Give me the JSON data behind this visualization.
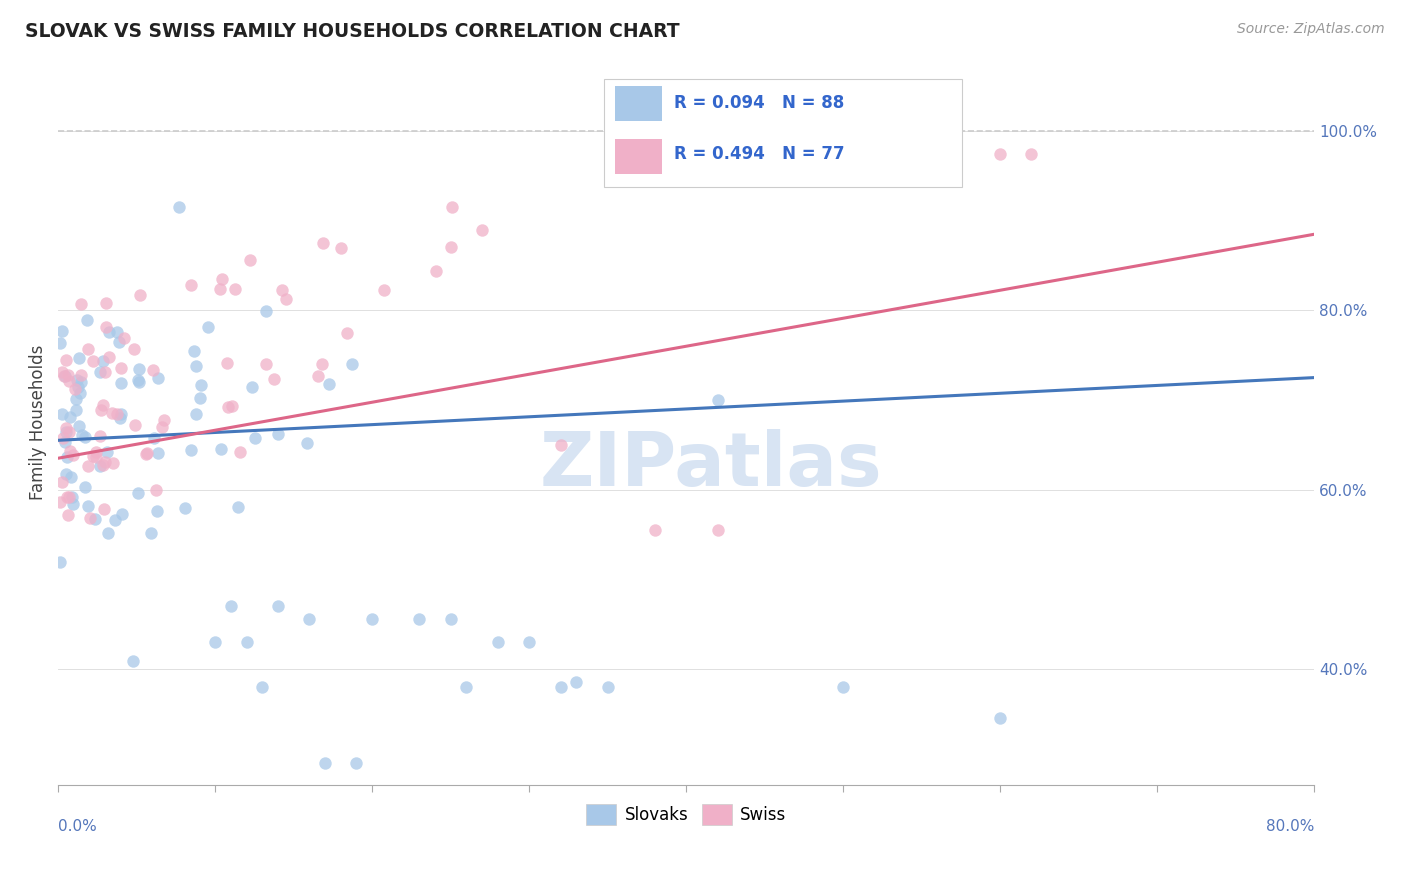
{
  "title": "SLOVAK VS SWISS FAMILY HOUSEHOLDS CORRELATION CHART",
  "source": "Source: ZipAtlas.com",
  "ylabel": "Family Households",
  "watermark": "ZIPatlas",
  "xlim": [
    0.0,
    0.8
  ],
  "ylim": [
    0.27,
    1.08
  ],
  "slovak_color": "#a8c8e8",
  "swiss_color": "#f0b0c8",
  "slovak_line_color": "#4477bb",
  "swiss_line_color": "#dd6688",
  "dashed_line_color": "#cccccc",
  "background_color": "#ffffff",
  "yticks": [
    0.4,
    0.6,
    0.8,
    1.0
  ],
  "ytick_labels": [
    "40.0%",
    "60.0%",
    "80.0%",
    "100.0%"
  ],
  "r_slovak": 0.094,
  "n_slovak": 88,
  "r_swiss": 0.494,
  "n_swiss": 77
}
